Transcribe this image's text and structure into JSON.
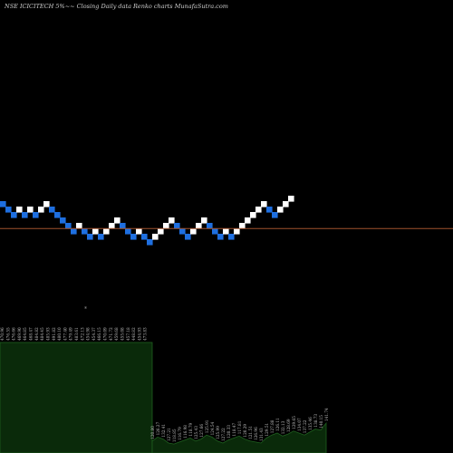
{
  "title": "NSE ICICITECH 5%~~  Closing Daily data  Renko  charts MunafaSutra.com",
  "colors": {
    "background": "#000000",
    "up_brick": "#ffffff",
    "down_brick": "#1e6fe0",
    "reference_line": "#a0522d",
    "volume_fill": "#0a2a0a",
    "volume_line": "#1f5f1f",
    "label_text": "#bfbfbf"
  },
  "chart_data": {
    "type": "renko",
    "title": "NSE ICICITECH 5%~~ Closing Daily data Renko charts MunafaSutra.com",
    "note_marker": "*",
    "brick_size_percent": 5,
    "bricks": [
      {
        "dir": "down",
        "level": 12
      },
      {
        "dir": "down",
        "level": 11
      },
      {
        "dir": "down",
        "level": 10
      },
      {
        "dir": "up",
        "level": 11
      },
      {
        "dir": "down",
        "level": 10
      },
      {
        "dir": "up",
        "level": 11
      },
      {
        "dir": "down",
        "level": 10
      },
      {
        "dir": "up",
        "level": 11
      },
      {
        "dir": "up",
        "level": 12
      },
      {
        "dir": "down",
        "level": 11
      },
      {
        "dir": "down",
        "level": 10
      },
      {
        "dir": "down",
        "level": 9
      },
      {
        "dir": "down",
        "level": 8
      },
      {
        "dir": "down",
        "level": 7
      },
      {
        "dir": "up",
        "level": 8
      },
      {
        "dir": "down",
        "level": 7
      },
      {
        "dir": "down",
        "level": 6
      },
      {
        "dir": "up",
        "level": 7
      },
      {
        "dir": "down",
        "level": 6
      },
      {
        "dir": "up",
        "level": 7
      },
      {
        "dir": "up",
        "level": 8
      },
      {
        "dir": "up",
        "level": 9
      },
      {
        "dir": "down",
        "level": 8
      },
      {
        "dir": "down",
        "level": 7
      },
      {
        "dir": "down",
        "level": 6
      },
      {
        "dir": "up",
        "level": 7
      },
      {
        "dir": "down",
        "level": 6
      },
      {
        "dir": "down",
        "level": 5
      },
      {
        "dir": "up",
        "level": 6
      },
      {
        "dir": "up",
        "level": 7
      },
      {
        "dir": "up",
        "level": 8
      },
      {
        "dir": "up",
        "level": 9
      },
      {
        "dir": "down",
        "level": 8
      },
      {
        "dir": "down",
        "level": 7
      },
      {
        "dir": "down",
        "level": 6
      },
      {
        "dir": "up",
        "level": 7
      },
      {
        "dir": "up",
        "level": 8
      },
      {
        "dir": "up",
        "level": 9
      },
      {
        "dir": "down",
        "level": 8
      },
      {
        "dir": "down",
        "level": 7
      },
      {
        "dir": "down",
        "level": 6
      },
      {
        "dir": "up",
        "level": 7
      },
      {
        "dir": "down",
        "level": 6
      },
      {
        "dir": "up",
        "level": 7
      },
      {
        "dir": "up",
        "level": 8
      },
      {
        "dir": "up",
        "level": 9
      },
      {
        "dir": "up",
        "level": 10
      },
      {
        "dir": "up",
        "level": 11
      },
      {
        "dir": "up",
        "level": 12
      },
      {
        "dir": "down",
        "level": 11
      },
      {
        "dir": "down",
        "level": 10
      },
      {
        "dir": "up",
        "level": 11
      },
      {
        "dir": "up",
        "level": 12
      },
      {
        "dir": "up",
        "level": 13
      }
    ],
    "reference_level": 7.5,
    "volume_left": {
      "labels": [
        "470.96",
        "476.55",
        "476.66",
        "469.90",
        "464.85",
        "468.47",
        "484.82",
        "484.45",
        "485.93",
        "491.82",
        "480.10",
        "477.40",
        "479.49",
        "483.61",
        "472.13",
        "454.98",
        "454.37",
        "466.15",
        "470.09",
        "471.72",
        "459.68",
        "455.08",
        "457.18",
        "448.82",
        "454.93",
        "473.83"
      ]
    },
    "volume_right": {
      "labels": [
        "120.80",
        "126.27",
        "132.41",
        "127.21",
        "118.85",
        "116.79",
        "116.98",
        "118.79",
        "125.43",
        "127.66",
        "125.91",
        "124.54",
        "125.99",
        "127.22",
        "120.33",
        "118.47",
        "117.81",
        "120.29",
        "121.51",
        "126.96",
        "131.43",
        "129.51",
        "127.88",
        "126.11",
        "132.13",
        "128.69",
        "129.65",
        "134.07",
        "137.22",
        "135.46",
        "138.73",
        "140.15",
        "141.74"
      ],
      "values": [
        0.12,
        0.16,
        0.14,
        0.1,
        0.09,
        0.11,
        0.13,
        0.15,
        0.12,
        0.14,
        0.18,
        0.16,
        0.12,
        0.1,
        0.13,
        0.15,
        0.17,
        0.14,
        0.12,
        0.11,
        0.1,
        0.15,
        0.18,
        0.2,
        0.17,
        0.19,
        0.22,
        0.2,
        0.18,
        0.21,
        0.24,
        0.23,
        0.3
      ]
    }
  }
}
